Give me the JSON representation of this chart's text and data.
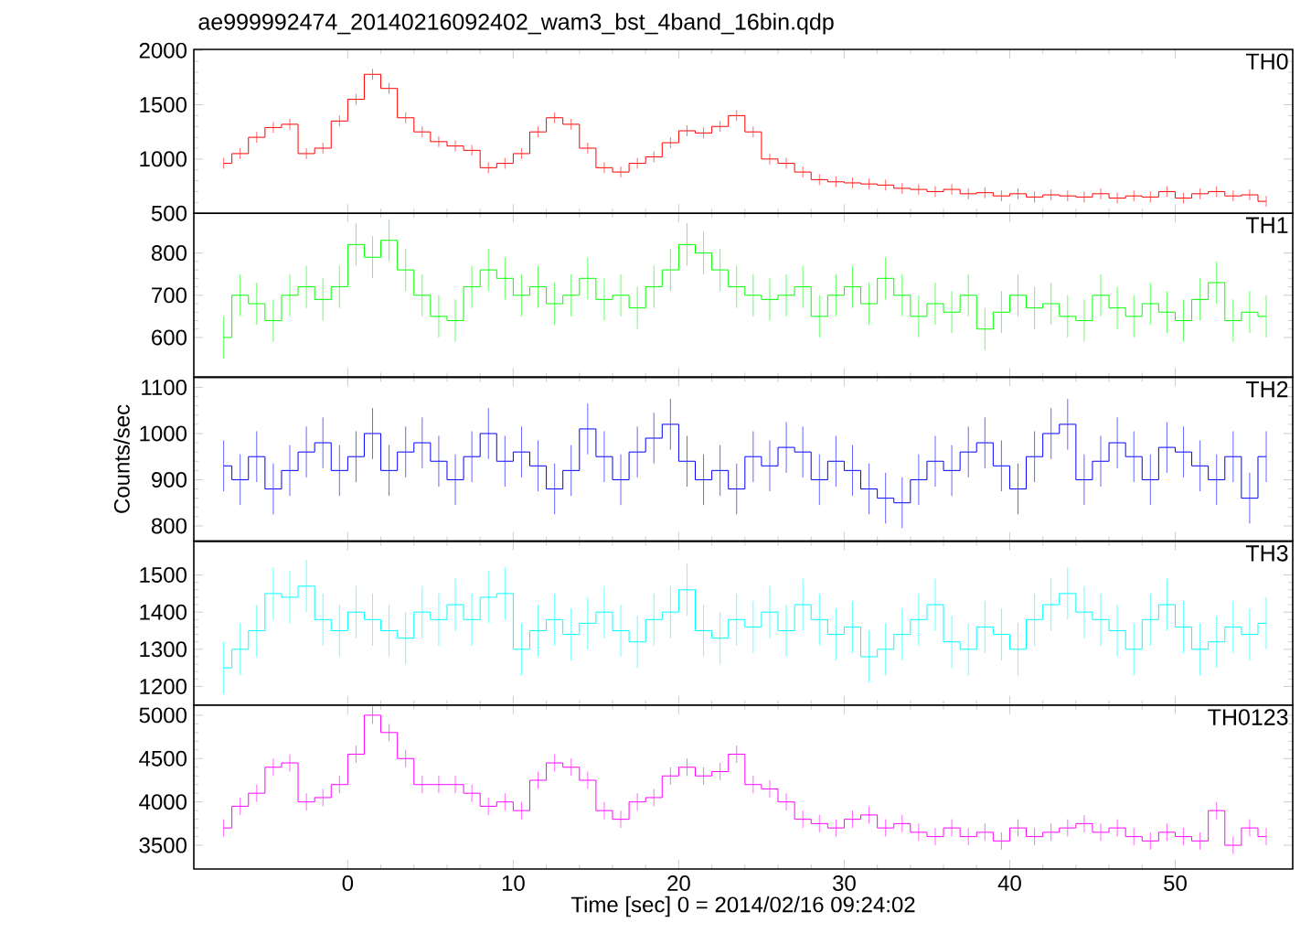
{
  "chart_data": [
    {
      "type": "step",
      "title": "ae999992474_20140216092402_wam3_bst_4band_16bin.qdp",
      "annotations": [
        "TH0"
      ],
      "tick_labels": "y",
      "x": [
        -7.5,
        -6.5,
        -5.5,
        -4.5,
        -3.5,
        -2.5,
        -1.5,
        -0.5,
        0.5,
        1.5,
        2.5,
        3.5,
        4.5,
        5.5,
        6.5,
        7.5,
        8.5,
        9.5,
        10.5,
        11.5,
        12.5,
        13.5,
        14.5,
        15.5,
        16.5,
        17.5,
        18.5,
        19.5,
        20.5,
        21.5,
        22.5,
        23.5,
        24.5,
        25.5,
        26.5,
        27.5,
        28.5,
        29.5,
        30.5,
        31.5,
        32.5,
        33.5,
        34.5,
        35.5,
        36.5,
        37.5,
        38.5,
        39.5,
        40.5,
        41.5,
        42.5,
        43.5,
        44.5,
        45.5,
        46.5,
        47.5,
        48.5,
        49.5,
        50.5,
        51.5,
        52.5,
        53.5,
        54.5,
        55.5
      ],
      "series": [
        {
          "color": "#ff0000",
          "values": [
            960,
            1050,
            1200,
            1290,
            1320,
            1050,
            1100,
            1350,
            1550,
            1780,
            1650,
            1380,
            1250,
            1160,
            1120,
            1080,
            920,
            960,
            1050,
            1250,
            1380,
            1320,
            1100,
            920,
            880,
            960,
            1020,
            1150,
            1260,
            1240,
            1300,
            1400,
            1250,
            1000,
            960,
            880,
            810,
            790,
            780,
            770,
            760,
            730,
            720,
            700,
            720,
            680,
            690,
            660,
            680,
            650,
            670,
            660,
            650,
            680,
            640,
            660,
            650,
            700,
            640,
            680,
            700,
            660,
            670,
            610
          ],
          "errors": [
            50,
            50,
            50,
            50,
            50,
            50,
            50,
            50,
            50,
            50,
            50,
            50,
            50,
            50,
            50,
            50,
            50,
            50,
            50,
            50,
            50,
            50,
            50,
            50,
            50,
            50,
            50,
            50,
            50,
            50,
            50,
            50,
            50,
            50,
            50,
            50,
            50,
            50,
            50,
            50,
            50,
            50,
            50,
            50,
            50,
            50,
            50,
            50,
            50,
            50,
            50,
            50,
            50,
            50,
            50,
            50,
            50,
            50,
            50,
            50,
            50,
            50,
            50,
            50
          ]
        }
      ],
      "xlim": [
        -9.3,
        57.1
      ],
      "ylim": [
        500,
        2010
      ],
      "xticks": [
        0,
        10,
        20,
        30,
        40,
        50
      ],
      "yticks": [
        500,
        1000,
        1500,
        2000
      ]
    },
    {
      "type": "step",
      "annotations": [
        "TH1"
      ],
      "tick_labels": "y",
      "x": [
        -7.5,
        -6.5,
        -5.5,
        -4.5,
        -3.5,
        -2.5,
        -1.5,
        -0.5,
        0.5,
        1.5,
        2.5,
        3.5,
        4.5,
        5.5,
        6.5,
        7.5,
        8.5,
        9.5,
        10.5,
        11.5,
        12.5,
        13.5,
        14.5,
        15.5,
        16.5,
        17.5,
        18.5,
        19.5,
        20.5,
        21.5,
        22.5,
        23.5,
        24.5,
        25.5,
        26.5,
        27.5,
        28.5,
        29.5,
        30.5,
        31.5,
        32.5,
        33.5,
        34.5,
        35.5,
        36.5,
        37.5,
        38.5,
        39.5,
        40.5,
        41.5,
        42.5,
        43.5,
        44.5,
        45.5,
        46.5,
        47.5,
        48.5,
        49.5,
        50.5,
        51.5,
        52.5,
        53.5,
        54.5,
        55.5
      ],
      "series": [
        {
          "color": "#00ff00",
          "values": [
            600,
            700,
            680,
            640,
            700,
            720,
            690,
            720,
            820,
            790,
            830,
            760,
            700,
            650,
            640,
            720,
            760,
            740,
            700,
            720,
            680,
            700,
            740,
            690,
            700,
            670,
            720,
            760,
            820,
            800,
            760,
            720,
            700,
            690,
            700,
            720,
            650,
            700,
            720,
            680,
            740,
            700,
            650,
            680,
            660,
            700,
            620,
            660,
            700,
            670,
            680,
            650,
            640,
            700,
            670,
            650,
            680,
            660,
            640,
            690,
            730,
            640,
            660,
            650
          ],
          "errors": [
            50,
            50,
            50,
            50,
            50,
            50,
            50,
            50,
            50,
            50,
            50,
            50,
            50,
            50,
            50,
            50,
            50,
            50,
            50,
            50,
            50,
            50,
            50,
            50,
            50,
            50,
            50,
            50,
            50,
            50,
            50,
            50,
            50,
            50,
            50,
            50,
            50,
            50,
            50,
            50,
            50,
            50,
            50,
            50,
            50,
            50,
            50,
            50,
            50,
            50,
            50,
            50,
            50,
            50,
            50,
            50,
            50,
            50,
            50,
            50,
            50,
            50,
            50,
            50
          ]
        }
      ],
      "xlim": [
        -9.3,
        57.1
      ],
      "ylim": [
        506,
        894
      ],
      "xticks": [
        0,
        10,
        20,
        30,
        40,
        50
      ],
      "yticks": [
        600,
        700,
        800
      ]
    },
    {
      "type": "step",
      "ylabel": "Counts/sec",
      "annotations": [
        "TH2"
      ],
      "tick_labels": "y",
      "x": [
        -7.5,
        -6.5,
        -5.5,
        -4.5,
        -3.5,
        -2.5,
        -1.5,
        -0.5,
        0.5,
        1.5,
        2.5,
        3.5,
        4.5,
        5.5,
        6.5,
        7.5,
        8.5,
        9.5,
        10.5,
        11.5,
        12.5,
        13.5,
        14.5,
        15.5,
        16.5,
        17.5,
        18.5,
        19.5,
        20.5,
        21.5,
        22.5,
        23.5,
        24.5,
        25.5,
        26.5,
        27.5,
        28.5,
        29.5,
        30.5,
        31.5,
        32.5,
        33.5,
        34.5,
        35.5,
        36.5,
        37.5,
        38.5,
        39.5,
        40.5,
        41.5,
        42.5,
        43.5,
        44.5,
        45.5,
        46.5,
        47.5,
        48.5,
        49.5,
        50.5,
        51.5,
        52.5,
        53.5,
        54.5,
        55.5
      ],
      "series": [
        {
          "color": "#0000ff",
          "values": [
            930,
            900,
            950,
            880,
            920,
            960,
            980,
            920,
            950,
            1000,
            920,
            960,
            980,
            940,
            900,
            950,
            1000,
            940,
            960,
            930,
            880,
            920,
            1010,
            950,
            900,
            960,
            990,
            1020,
            940,
            900,
            920,
            880,
            950,
            930,
            970,
            960,
            900,
            940,
            920,
            880,
            860,
            850,
            900,
            940,
            920,
            960,
            980,
            930,
            880,
            950,
            1000,
            1020,
            900,
            940,
            980,
            950,
            900,
            970,
            960,
            930,
            900,
            950,
            860,
            950
          ],
          "errors": [
            55,
            55,
            55,
            55,
            55,
            55,
            55,
            55,
            55,
            55,
            55,
            55,
            55,
            55,
            55,
            55,
            55,
            55,
            55,
            55,
            55,
            55,
            55,
            55,
            55,
            55,
            55,
            55,
            55,
            55,
            55,
            55,
            55,
            55,
            55,
            55,
            55,
            55,
            55,
            55,
            55,
            55,
            55,
            55,
            55,
            55,
            55,
            55,
            55,
            55,
            55,
            55,
            55,
            55,
            55,
            55,
            55,
            55,
            55,
            55,
            55,
            55,
            55,
            55
          ]
        }
      ],
      "xlim": [
        -9.3,
        57.1
      ],
      "ylim": [
        767,
        1122
      ],
      "xticks": [
        0,
        10,
        20,
        30,
        40,
        50
      ],
      "yticks": [
        800,
        900,
        1000,
        1100
      ]
    },
    {
      "type": "step",
      "annotations": [
        "TH3"
      ],
      "tick_labels": "y",
      "x": [
        -7.5,
        -6.5,
        -5.5,
        -4.5,
        -3.5,
        -2.5,
        -1.5,
        -0.5,
        0.5,
        1.5,
        2.5,
        3.5,
        4.5,
        5.5,
        6.5,
        7.5,
        8.5,
        9.5,
        10.5,
        11.5,
        12.5,
        13.5,
        14.5,
        15.5,
        16.5,
        17.5,
        18.5,
        19.5,
        20.5,
        21.5,
        22.5,
        23.5,
        24.5,
        25.5,
        26.5,
        27.5,
        28.5,
        29.5,
        30.5,
        31.5,
        32.5,
        33.5,
        34.5,
        35.5,
        36.5,
        37.5,
        38.5,
        39.5,
        40.5,
        41.5,
        42.5,
        43.5,
        44.5,
        45.5,
        46.5,
        47.5,
        48.5,
        49.5,
        50.5,
        51.5,
        52.5,
        53.5,
        54.5,
        55.5
      ],
      "series": [
        {
          "color": "#00ffff",
          "values": [
            1250,
            1300,
            1350,
            1450,
            1440,
            1470,
            1380,
            1350,
            1400,
            1380,
            1350,
            1330,
            1400,
            1380,
            1420,
            1380,
            1440,
            1450,
            1300,
            1350,
            1380,
            1340,
            1370,
            1400,
            1350,
            1320,
            1380,
            1400,
            1460,
            1350,
            1330,
            1380,
            1360,
            1400,
            1350,
            1420,
            1380,
            1340,
            1360,
            1280,
            1300,
            1340,
            1380,
            1420,
            1320,
            1300,
            1360,
            1340,
            1300,
            1380,
            1420,
            1450,
            1400,
            1380,
            1350,
            1300,
            1380,
            1420,
            1360,
            1300,
            1320,
            1360,
            1340,
            1370
          ],
          "errors": [
            70,
            70,
            70,
            70,
            70,
            70,
            70,
            70,
            70,
            70,
            70,
            70,
            70,
            70,
            70,
            70,
            70,
            70,
            70,
            70,
            70,
            70,
            70,
            70,
            70,
            70,
            70,
            70,
            70,
            70,
            70,
            70,
            70,
            70,
            70,
            70,
            70,
            70,
            70,
            70,
            70,
            70,
            70,
            70,
            70,
            70,
            70,
            70,
            70,
            70,
            70,
            70,
            70,
            70,
            70,
            70,
            70,
            70,
            70,
            70,
            70,
            70,
            70,
            70
          ]
        }
      ],
      "xlim": [
        -9.3,
        57.1
      ],
      "ylim": [
        1150,
        1591
      ],
      "xticks": [
        0,
        10,
        20,
        30,
        40,
        50
      ],
      "yticks": [
        1200,
        1300,
        1400,
        1500
      ]
    },
    {
      "type": "step",
      "xlabel": "Time [sec] 0 = 2014/02/16 09:24:02",
      "annotations": [
        "TH0123"
      ],
      "x": [
        -7.5,
        -6.5,
        -5.5,
        -4.5,
        -3.5,
        -2.5,
        -1.5,
        -0.5,
        0.5,
        1.5,
        2.5,
        3.5,
        4.5,
        5.5,
        6.5,
        7.5,
        8.5,
        9.5,
        10.5,
        11.5,
        12.5,
        13.5,
        14.5,
        15.5,
        16.5,
        17.5,
        18.5,
        19.5,
        20.5,
        21.5,
        22.5,
        23.5,
        24.5,
        25.5,
        26.5,
        27.5,
        28.5,
        29.5,
        30.5,
        31.5,
        32.5,
        33.5,
        34.5,
        35.5,
        36.5,
        37.5,
        38.5,
        39.5,
        40.5,
        41.5,
        42.5,
        43.5,
        44.5,
        45.5,
        46.5,
        47.5,
        48.5,
        49.5,
        50.5,
        51.5,
        52.5,
        53.5,
        54.5,
        55.5
      ],
      "series": [
        {
          "color": "#ff00ff",
          "values": [
            3700,
            3950,
            4100,
            4400,
            4450,
            4000,
            4050,
            4200,
            4550,
            5000,
            4800,
            4500,
            4200,
            4200,
            4200,
            4100,
            3950,
            4000,
            3900,
            4250,
            4450,
            4400,
            4250,
            3900,
            3800,
            4000,
            4050,
            4300,
            4400,
            4300,
            4350,
            4550,
            4200,
            4150,
            4000,
            3800,
            3750,
            3700,
            3800,
            3850,
            3700,
            3750,
            3650,
            3600,
            3700,
            3600,
            3650,
            3550,
            3700,
            3600,
            3650,
            3700,
            3750,
            3650,
            3700,
            3600,
            3550,
            3650,
            3600,
            3550,
            3900,
            3500,
            3700,
            3600
          ],
          "errors": [
            100,
            100,
            100,
            100,
            100,
            100,
            100,
            100,
            100,
            100,
            100,
            100,
            100,
            100,
            100,
            100,
            100,
            100,
            100,
            100,
            100,
            100,
            100,
            100,
            100,
            100,
            100,
            100,
            100,
            100,
            100,
            100,
            100,
            100,
            100,
            100,
            100,
            100,
            100,
            100,
            100,
            100,
            100,
            100,
            100,
            100,
            100,
            100,
            100,
            100,
            100,
            100,
            100,
            100,
            100,
            100,
            100,
            100,
            100,
            100,
            100,
            100,
            100,
            100
          ]
        }
      ],
      "xlim": [
        -9.3,
        57.1
      ],
      "ylim": [
        3227,
        5117
      ],
      "xticks": [
        0,
        10,
        20,
        30,
        40,
        50
      ],
      "yticks": [
        3500,
        4000,
        4500,
        5000
      ]
    }
  ]
}
